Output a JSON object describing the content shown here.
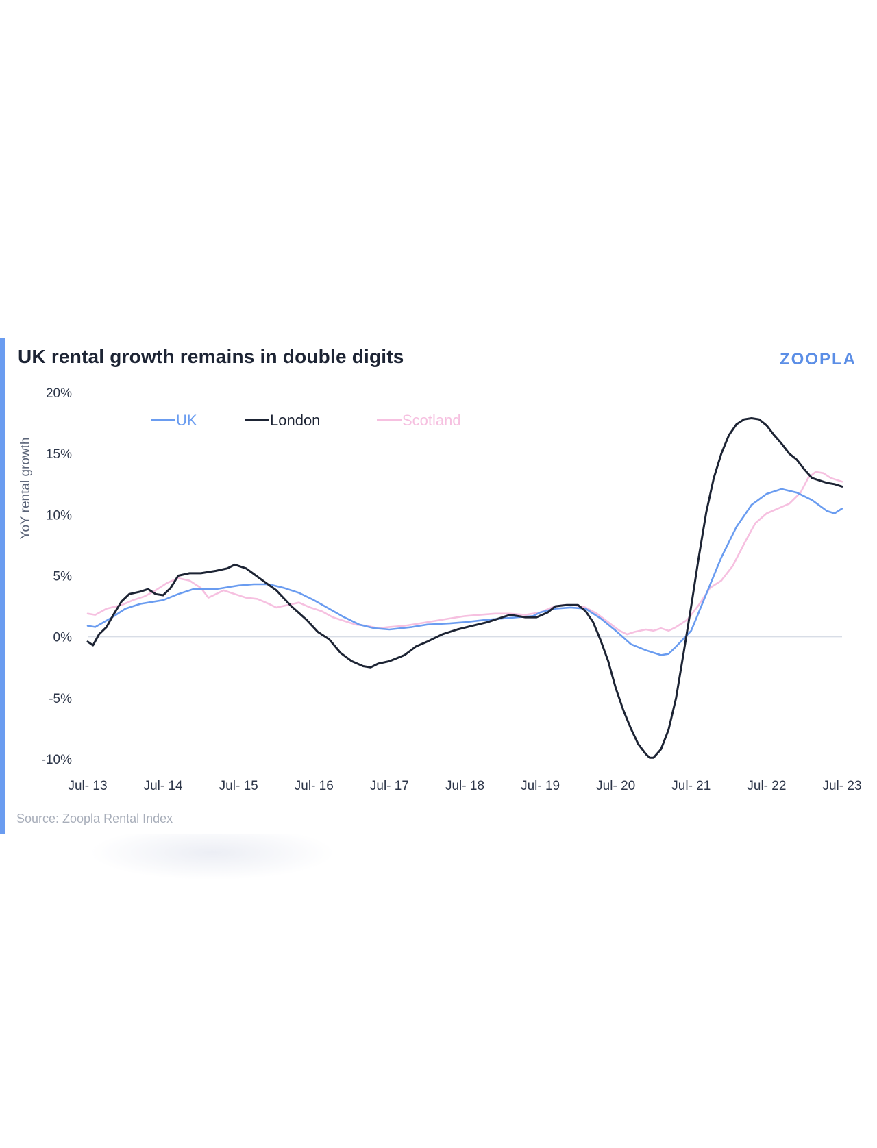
{
  "title": "UK rental growth remains in double digits",
  "brand": "ZOOPLA",
  "source": "Source: Zoopla Rental Index",
  "colors": {
    "uk": "#6a9cf0",
    "london": "#1d2434",
    "scotland": "#f6c0e0",
    "accent": "#6a9cf0",
    "zero": "#d8dde6"
  },
  "chart_data": {
    "type": "line",
    "title": "UK rental growth remains in double digits",
    "xlabel": "",
    "ylabel": "YoY rental growth",
    "ylim": [
      -10,
      20
    ],
    "yticks": [
      20,
      15,
      10,
      5,
      0,
      -5,
      -10
    ],
    "ytick_labels": [
      "20%",
      "15%",
      "10%",
      "5%",
      "0%",
      "-5%",
      "-10%"
    ],
    "xlim": [
      2013.5,
      2023.5
    ],
    "x_tick_positions": [
      2013.5,
      2014.5,
      2015.5,
      2016.5,
      2017.5,
      2018.5,
      2019.5,
      2020.5,
      2021.5,
      2022.5,
      2023.5
    ],
    "x_tick_labels": [
      "Jul- 13",
      "Jul- 14",
      "Jul- 15",
      "Jul- 16",
      "Jul- 17",
      "Jul- 18",
      "Jul- 19",
      "Jul- 20",
      "Jul- 21",
      "Jul- 22",
      "Jul- 23"
    ],
    "legend": [
      "UK",
      "London",
      "Scotland"
    ],
    "series": [
      {
        "name": "UK",
        "key": "uk",
        "points": [
          [
            2013.5,
            0.9
          ],
          [
            2013.6,
            0.8
          ],
          [
            2013.8,
            1.5
          ],
          [
            2014.0,
            2.3
          ],
          [
            2014.2,
            2.7
          ],
          [
            2014.5,
            3.0
          ],
          [
            2014.7,
            3.5
          ],
          [
            2014.9,
            3.9
          ],
          [
            2015.2,
            3.9
          ],
          [
            2015.5,
            4.2
          ],
          [
            2015.7,
            4.3
          ],
          [
            2015.9,
            4.3
          ],
          [
            2016.1,
            4.0
          ],
          [
            2016.3,
            3.6
          ],
          [
            2016.5,
            3.0
          ],
          [
            2016.7,
            2.3
          ],
          [
            2016.9,
            1.6
          ],
          [
            2017.1,
            1.0
          ],
          [
            2017.3,
            0.7
          ],
          [
            2017.5,
            0.6
          ],
          [
            2017.8,
            0.8
          ],
          [
            2018.0,
            1.0
          ],
          [
            2018.3,
            1.1
          ],
          [
            2018.5,
            1.2
          ],
          [
            2018.8,
            1.4
          ],
          [
            2019.0,
            1.5
          ],
          [
            2019.2,
            1.6
          ],
          [
            2019.4,
            1.7
          ],
          [
            2019.5,
            2.0
          ],
          [
            2019.7,
            2.3
          ],
          [
            2019.9,
            2.4
          ],
          [
            2020.1,
            2.3
          ],
          [
            2020.3,
            1.5
          ],
          [
            2020.5,
            0.5
          ],
          [
            2020.7,
            -0.6
          ],
          [
            2020.9,
            -1.1
          ],
          [
            2021.0,
            -1.3
          ],
          [
            2021.1,
            -1.5
          ],
          [
            2021.2,
            -1.4
          ],
          [
            2021.3,
            -0.8
          ],
          [
            2021.5,
            0.5
          ],
          [
            2021.7,
            3.5
          ],
          [
            2021.9,
            6.5
          ],
          [
            2022.1,
            9.0
          ],
          [
            2022.3,
            10.8
          ],
          [
            2022.5,
            11.7
          ],
          [
            2022.7,
            12.1
          ],
          [
            2022.9,
            11.8
          ],
          [
            2023.1,
            11.2
          ],
          [
            2023.3,
            10.3
          ],
          [
            2023.4,
            10.1
          ],
          [
            2023.5,
            10.5
          ]
        ]
      },
      {
        "name": "London",
        "key": "london",
        "points": [
          [
            2013.5,
            -0.4
          ],
          [
            2013.57,
            -0.7
          ],
          [
            2013.65,
            0.2
          ],
          [
            2013.75,
            0.8
          ],
          [
            2013.85,
            1.9
          ],
          [
            2013.95,
            2.9
          ],
          [
            2014.05,
            3.5
          ],
          [
            2014.2,
            3.7
          ],
          [
            2014.3,
            3.9
          ],
          [
            2014.4,
            3.5
          ],
          [
            2014.5,
            3.4
          ],
          [
            2014.6,
            4.0
          ],
          [
            2014.7,
            5.0
          ],
          [
            2014.85,
            5.2
          ],
          [
            2015.0,
            5.2
          ],
          [
            2015.2,
            5.4
          ],
          [
            2015.35,
            5.6
          ],
          [
            2015.45,
            5.9
          ],
          [
            2015.6,
            5.6
          ],
          [
            2015.8,
            4.7
          ],
          [
            2016.0,
            3.8
          ],
          [
            2016.2,
            2.5
          ],
          [
            2016.4,
            1.4
          ],
          [
            2016.55,
            0.4
          ],
          [
            2016.7,
            -0.2
          ],
          [
            2016.85,
            -1.3
          ],
          [
            2017.0,
            -2.0
          ],
          [
            2017.15,
            -2.4
          ],
          [
            2017.25,
            -2.5
          ],
          [
            2017.35,
            -2.2
          ],
          [
            2017.5,
            -2.0
          ],
          [
            2017.7,
            -1.5
          ],
          [
            2017.85,
            -0.8
          ],
          [
            2018.0,
            -0.4
          ],
          [
            2018.2,
            0.2
          ],
          [
            2018.4,
            0.6
          ],
          [
            2018.6,
            0.9
          ],
          [
            2018.8,
            1.2
          ],
          [
            2019.0,
            1.6
          ],
          [
            2019.1,
            1.8
          ],
          [
            2019.3,
            1.6
          ],
          [
            2019.45,
            1.6
          ],
          [
            2019.6,
            2.0
          ],
          [
            2019.7,
            2.5
          ],
          [
            2019.85,
            2.6
          ],
          [
            2020.0,
            2.6
          ],
          [
            2020.1,
            2.1
          ],
          [
            2020.2,
            1.2
          ],
          [
            2020.3,
            -0.3
          ],
          [
            2020.4,
            -2.0
          ],
          [
            2020.5,
            -4.2
          ],
          [
            2020.6,
            -6.0
          ],
          [
            2020.7,
            -7.5
          ],
          [
            2020.8,
            -8.8
          ],
          [
            2020.9,
            -9.6
          ],
          [
            2020.95,
            -9.9
          ],
          [
            2021.0,
            -9.9
          ],
          [
            2021.1,
            -9.2
          ],
          [
            2021.2,
            -7.6
          ],
          [
            2021.3,
            -5.0
          ],
          [
            2021.4,
            -1.3
          ],
          [
            2021.5,
            2.5
          ],
          [
            2021.6,
            6.5
          ],
          [
            2021.7,
            10.2
          ],
          [
            2021.8,
            13.0
          ],
          [
            2021.9,
            15.0
          ],
          [
            2022.0,
            16.5
          ],
          [
            2022.1,
            17.4
          ],
          [
            2022.2,
            17.8
          ],
          [
            2022.3,
            17.9
          ],
          [
            2022.4,
            17.8
          ],
          [
            2022.5,
            17.3
          ],
          [
            2022.6,
            16.5
          ],
          [
            2022.7,
            15.8
          ],
          [
            2022.8,
            15.0
          ],
          [
            2022.9,
            14.5
          ],
          [
            2023.0,
            13.7
          ],
          [
            2023.1,
            13.0
          ],
          [
            2023.2,
            12.8
          ],
          [
            2023.3,
            12.6
          ],
          [
            2023.4,
            12.5
          ],
          [
            2023.5,
            12.3
          ]
        ]
      },
      {
        "name": "Scotland",
        "key": "scotland",
        "points": [
          [
            2013.5,
            1.9
          ],
          [
            2013.6,
            1.8
          ],
          [
            2013.75,
            2.3
          ],
          [
            2013.95,
            2.6
          ],
          [
            2014.1,
            3.0
          ],
          [
            2014.25,
            3.3
          ],
          [
            2014.4,
            3.8
          ],
          [
            2014.55,
            4.4
          ],
          [
            2014.7,
            4.8
          ],
          [
            2014.85,
            4.6
          ],
          [
            2015.0,
            4.0
          ],
          [
            2015.1,
            3.2
          ],
          [
            2015.2,
            3.5
          ],
          [
            2015.3,
            3.8
          ],
          [
            2015.45,
            3.5
          ],
          [
            2015.6,
            3.2
          ],
          [
            2015.75,
            3.1
          ],
          [
            2015.9,
            2.7
          ],
          [
            2016.0,
            2.4
          ],
          [
            2016.15,
            2.6
          ],
          [
            2016.3,
            2.8
          ],
          [
            2016.45,
            2.4
          ],
          [
            2016.6,
            2.1
          ],
          [
            2016.75,
            1.6
          ],
          [
            2016.9,
            1.3
          ],
          [
            2017.05,
            1.0
          ],
          [
            2017.2,
            0.9
          ],
          [
            2017.35,
            0.7
          ],
          [
            2017.5,
            0.8
          ],
          [
            2017.7,
            0.9
          ],
          [
            2017.9,
            1.1
          ],
          [
            2018.1,
            1.3
          ],
          [
            2018.3,
            1.5
          ],
          [
            2018.5,
            1.7
          ],
          [
            2018.7,
            1.8
          ],
          [
            2018.9,
            1.9
          ],
          [
            2019.1,
            1.9
          ],
          [
            2019.3,
            1.8
          ],
          [
            2019.5,
            2.0
          ],
          [
            2019.65,
            2.4
          ],
          [
            2019.8,
            2.6
          ],
          [
            2019.95,
            2.6
          ],
          [
            2020.1,
            2.4
          ],
          [
            2020.25,
            1.9
          ],
          [
            2020.4,
            1.2
          ],
          [
            2020.55,
            0.5
          ],
          [
            2020.65,
            0.2
          ],
          [
            2020.75,
            0.4
          ],
          [
            2020.9,
            0.6
          ],
          [
            2021.0,
            0.5
          ],
          [
            2021.1,
            0.7
          ],
          [
            2021.2,
            0.5
          ],
          [
            2021.3,
            0.8
          ],
          [
            2021.45,
            1.4
          ],
          [
            2021.6,
            2.6
          ],
          [
            2021.75,
            4.0
          ],
          [
            2021.9,
            4.6
          ],
          [
            2022.05,
            5.8
          ],
          [
            2022.2,
            7.6
          ],
          [
            2022.35,
            9.3
          ],
          [
            2022.5,
            10.1
          ],
          [
            2022.65,
            10.5
          ],
          [
            2022.8,
            10.9
          ],
          [
            2022.95,
            11.8
          ],
          [
            2023.05,
            13.0
          ],
          [
            2023.15,
            13.5
          ],
          [
            2023.25,
            13.4
          ],
          [
            2023.35,
            13.0
          ],
          [
            2023.5,
            12.7
          ]
        ]
      }
    ]
  }
}
